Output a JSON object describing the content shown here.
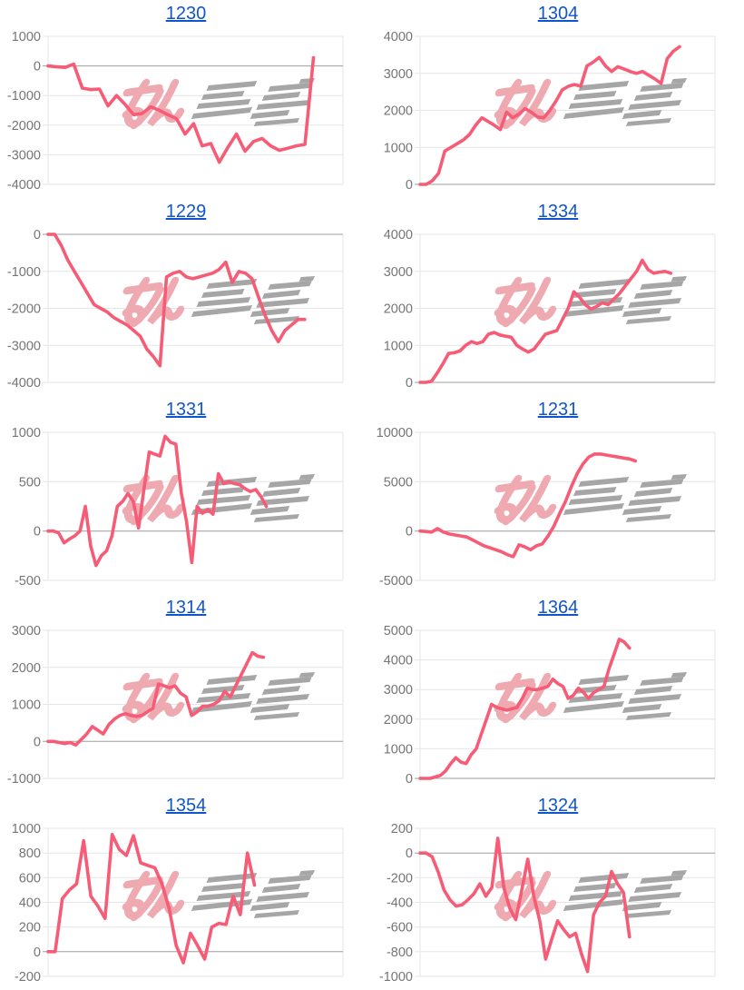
{
  "colors": {
    "line": "#f65c76",
    "title_link": "#1155cc",
    "axis_label": "#757575",
    "gridline": "#e6e6e6",
    "zero_line": "#9e9e9e",
    "watermark_pink": "#efa9b0",
    "watermark_gray": "#a6a6a6",
    "background": "#ffffff"
  },
  "watermark": {
    "name": "min-repo-logo",
    "text_pink": "みん",
    "text_gray": "レポ"
  },
  "chart_data": [
    {
      "type": "line",
      "title": "1230",
      "grid": true,
      "legend": "none",
      "ylim": [
        -4000,
        1000
      ],
      "yticks": [
        1000,
        0,
        -1000,
        -2000,
        -3000,
        -4000
      ],
      "x_span_frac": 0.9,
      "values": [
        0,
        -30,
        -50,
        60,
        -750,
        -800,
        -780,
        -1350,
        -1000,
        -1300,
        -1650,
        -1600,
        -1380,
        -1500,
        -1650,
        -1780,
        -2300,
        -1950,
        -2700,
        -2620,
        -3250,
        -2750,
        -2300,
        -2880,
        -2550,
        -2450,
        -2700,
        -2850,
        -2780,
        -2700,
        -2650,
        280
      ]
    },
    {
      "type": "line",
      "title": "1304",
      "grid": true,
      "legend": "none",
      "ylim": [
        0,
        4000
      ],
      "yticks": [
        4000,
        3000,
        2000,
        1000,
        0
      ],
      "x_span_frac": 0.88,
      "values": [
        0,
        0,
        100,
        300,
        900,
        1000,
        1100,
        1200,
        1350,
        1600,
        1800,
        1700,
        1600,
        1480,
        1950,
        1800,
        1900,
        2050,
        1950,
        1820,
        1800,
        2000,
        2250,
        2550,
        2650,
        2700,
        2650,
        3200,
        3300,
        3430,
        3200,
        3050,
        3180,
        3120,
        3050,
        3000,
        3050,
        2950,
        2850,
        2730,
        3400,
        3600,
        3720
      ]
    },
    {
      "type": "line",
      "title": "1229",
      "grid": true,
      "legend": "none",
      "ylim": [
        -4000,
        0
      ],
      "yticks": [
        0,
        -1000,
        -2000,
        -3000,
        -4000
      ],
      "x_span_frac": 0.87,
      "values": [
        0,
        0,
        -300,
        -700,
        -1000,
        -1300,
        -1600,
        -1900,
        -2000,
        -2100,
        -2250,
        -2350,
        -2450,
        -2600,
        -2750,
        -3100,
        -3300,
        -3550,
        -1150,
        -1050,
        -1000,
        -1150,
        -1200,
        -1150,
        -1100,
        -1050,
        -950,
        -750,
        -1300,
        -1000,
        -1050,
        -1200,
        -1700,
        -2200,
        -2600,
        -2900,
        -2600,
        -2450,
        -2300,
        -2300
      ]
    },
    {
      "type": "line",
      "title": "1334",
      "grid": true,
      "legend": "none",
      "ylim": [
        0,
        4000
      ],
      "yticks": [
        4000,
        3000,
        2000,
        1000,
        0
      ],
      "x_span_frac": 0.85,
      "values": [
        0,
        0,
        30,
        250,
        500,
        780,
        800,
        850,
        1000,
        1100,
        1050,
        1100,
        1300,
        1350,
        1280,
        1250,
        1220,
        1000,
        900,
        820,
        900,
        1100,
        1300,
        1350,
        1400,
        1700,
        2000,
        2450,
        2300,
        2100,
        1980,
        2050,
        2150,
        2100,
        2250,
        2400,
        2600,
        2800,
        3000,
        3300,
        3050,
        2950,
        2980,
        3000,
        2950
      ]
    },
    {
      "type": "line",
      "title": "1331",
      "grid": true,
      "legend": "none",
      "ylim": [
        -500,
        1000
      ],
      "yticks": [
        1000,
        500,
        0,
        -500
      ],
      "x_span_frac": 0.74,
      "values": [
        0,
        0,
        -20,
        -120,
        -80,
        -50,
        0,
        250,
        -150,
        -350,
        -250,
        -200,
        -50,
        250,
        300,
        380,
        300,
        30,
        420,
        800,
        780,
        760,
        960,
        900,
        880,
        400,
        100,
        -320,
        250,
        180,
        220,
        170,
        580,
        480,
        500,
        480,
        470,
        430,
        400,
        420,
        350,
        250
      ]
    },
    {
      "type": "line",
      "title": "1231",
      "grid": true,
      "legend": "none",
      "ylim": [
        -5000,
        10000
      ],
      "yticks": [
        10000,
        5000,
        0,
        -5000
      ],
      "x_span_frac": 0.73,
      "values": [
        0,
        -50,
        -100,
        250,
        -100,
        -300,
        -400,
        -500,
        -600,
        -900,
        -1200,
        -1500,
        -1700,
        -1900,
        -2100,
        -2400,
        -2600,
        -1400,
        -1600,
        -1900,
        -1500,
        -1300,
        -500,
        500,
        1800,
        3000,
        4500,
        5800,
        6800,
        7500,
        7800,
        7800,
        7700,
        7600,
        7500,
        7400,
        7300,
        7100
      ]
    },
    {
      "type": "line",
      "title": "1314",
      "grid": true,
      "legend": "none",
      "ylim": [
        -1000,
        3000
      ],
      "yticks": [
        3000,
        2000,
        1000,
        0,
        -1000
      ],
      "x_span_frac": 0.73,
      "values": [
        0,
        0,
        -30,
        -60,
        -30,
        -100,
        50,
        200,
        400,
        300,
        200,
        450,
        600,
        700,
        750,
        700,
        670,
        700,
        800,
        900,
        1550,
        1500,
        1450,
        1500,
        1300,
        1200,
        700,
        800,
        950,
        950,
        1000,
        1100,
        1350,
        1200,
        1500,
        1800,
        2100,
        2400,
        2300,
        2270
      ]
    },
    {
      "type": "line",
      "title": "1364",
      "grid": true,
      "legend": "none",
      "ylim": [
        0,
        5000
      ],
      "yticks": [
        5000,
        4000,
        3000,
        2000,
        1000,
        0
      ],
      "x_span_frac": 0.71,
      "values": [
        0,
        0,
        0,
        50,
        100,
        250,
        500,
        700,
        550,
        500,
        800,
        1000,
        1500,
        2000,
        2500,
        2400,
        2350,
        2300,
        2350,
        2400,
        2700,
        3050,
        3000,
        3000,
        3050,
        3100,
        3350,
        3200,
        3100,
        2700,
        2800,
        3050,
        2900,
        2700,
        2900,
        3000,
        3100,
        3700,
        4200,
        4700,
        4600,
        4400
      ]
    },
    {
      "type": "line",
      "title": "1354",
      "grid": true,
      "legend": "none",
      "ylim": [
        -200,
        1000
      ],
      "yticks": [
        1000,
        800,
        600,
        400,
        200,
        0,
        -200
      ],
      "x_span_frac": 0.7,
      "values": [
        0,
        0,
        430,
        500,
        550,
        900,
        450,
        370,
        270,
        950,
        830,
        780,
        940,
        720,
        700,
        680,
        550,
        350,
        50,
        -90,
        150,
        50,
        -60,
        200,
        230,
        220,
        450,
        300,
        800,
        540
      ]
    },
    {
      "type": "line",
      "title": "1324",
      "grid": true,
      "legend": "none",
      "ylim": [
        -1000,
        200
      ],
      "yticks": [
        200,
        0,
        -200,
        -400,
        -600,
        -800,
        -1000
      ],
      "x_span_frac": 0.71,
      "values": [
        0,
        0,
        -30,
        -150,
        -300,
        -380,
        -430,
        -420,
        -380,
        -330,
        -250,
        -350,
        -280,
        120,
        -280,
        -450,
        -540,
        -300,
        -50,
        -350,
        -550,
        -860,
        -700,
        -550,
        -620,
        -680,
        -650,
        -820,
        -960,
        -500,
        -400,
        -350,
        -150,
        -250,
        -320,
        -680
      ]
    }
  ]
}
